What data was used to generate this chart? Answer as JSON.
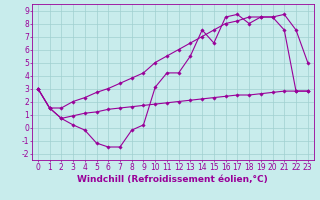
{
  "xlabel": "Windchill (Refroidissement éolien,°C)",
  "x": [
    0,
    1,
    2,
    3,
    4,
    5,
    6,
    7,
    8,
    9,
    10,
    11,
    12,
    13,
    14,
    15,
    16,
    17,
    18,
    19,
    20,
    21,
    22,
    23
  ],
  "line_jagged": [
    3.0,
    1.5,
    0.7,
    0.2,
    -0.2,
    -1.2,
    -1.5,
    -1.5,
    -0.2,
    0.2,
    3.1,
    4.2,
    4.2,
    5.5,
    7.5,
    6.5,
    8.5,
    8.7,
    8.0,
    8.5,
    8.5,
    8.7,
    7.5,
    5.0
  ],
  "line_upper": [
    3.0,
    1.5,
    1.5,
    2.0,
    2.3,
    2.7,
    3.0,
    3.4,
    3.8,
    4.2,
    5.0,
    5.5,
    6.0,
    6.5,
    7.0,
    7.5,
    8.0,
    8.2,
    8.5,
    8.5,
    8.5,
    7.5,
    2.8,
    2.8
  ],
  "line_lower": [
    3.0,
    1.5,
    0.7,
    0.9,
    1.1,
    1.2,
    1.4,
    1.5,
    1.6,
    1.7,
    1.8,
    1.9,
    2.0,
    2.1,
    2.2,
    2.3,
    2.4,
    2.5,
    2.5,
    2.6,
    2.7,
    2.8,
    2.8,
    2.8
  ],
  "line_color": "#990099",
  "bg_color": "#c8ecec",
  "grid_color": "#a0d0d0",
  "ylim": [
    -2.5,
    9.5
  ],
  "yticks": [
    -2,
    -1,
    0,
    1,
    2,
    3,
    4,
    5,
    6,
    7,
    8,
    9
  ],
  "xticks": [
    0,
    1,
    2,
    3,
    4,
    5,
    6,
    7,
    8,
    9,
    10,
    11,
    12,
    13,
    14,
    15,
    16,
    17,
    18,
    19,
    20,
    21,
    22,
    23
  ],
  "marker": "D",
  "marker_size": 1.8,
  "line_width": 0.8,
  "xlabel_fontsize": 6.5,
  "tick_fontsize": 5.5
}
